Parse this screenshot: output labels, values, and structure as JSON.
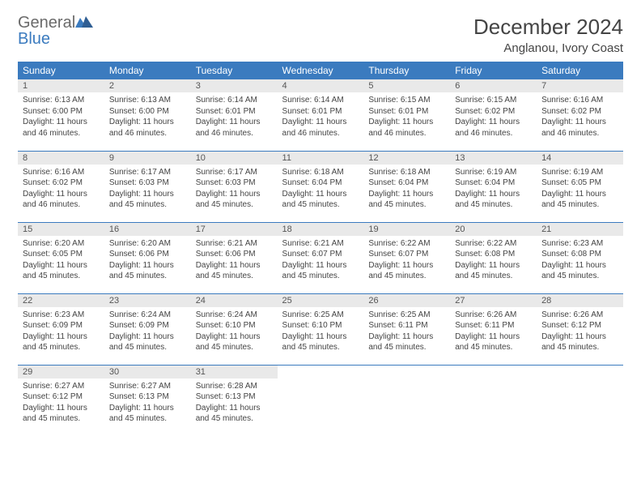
{
  "brand": {
    "word1": "General",
    "word2": "Blue"
  },
  "title": "December 2024",
  "location": "Anglanou, Ivory Coast",
  "colors": {
    "header_bg": "#3b7bbf",
    "header_text": "#ffffff",
    "daynum_bg": "#e9e9e9",
    "text": "#444444",
    "rule": "#3b7bbf",
    "page_bg": "#ffffff"
  },
  "day_names": [
    "Sunday",
    "Monday",
    "Tuesday",
    "Wednesday",
    "Thursday",
    "Friday",
    "Saturday"
  ],
  "weeks": [
    [
      {
        "n": "1",
        "sr": "6:13 AM",
        "ss": "6:00 PM",
        "dl": "11 hours and 46 minutes."
      },
      {
        "n": "2",
        "sr": "6:13 AM",
        "ss": "6:00 PM",
        "dl": "11 hours and 46 minutes."
      },
      {
        "n": "3",
        "sr": "6:14 AM",
        "ss": "6:01 PM",
        "dl": "11 hours and 46 minutes."
      },
      {
        "n": "4",
        "sr": "6:14 AM",
        "ss": "6:01 PM",
        "dl": "11 hours and 46 minutes."
      },
      {
        "n": "5",
        "sr": "6:15 AM",
        "ss": "6:01 PM",
        "dl": "11 hours and 46 minutes."
      },
      {
        "n": "6",
        "sr": "6:15 AM",
        "ss": "6:02 PM",
        "dl": "11 hours and 46 minutes."
      },
      {
        "n": "7",
        "sr": "6:16 AM",
        "ss": "6:02 PM",
        "dl": "11 hours and 46 minutes."
      }
    ],
    [
      {
        "n": "8",
        "sr": "6:16 AM",
        "ss": "6:02 PM",
        "dl": "11 hours and 46 minutes."
      },
      {
        "n": "9",
        "sr": "6:17 AM",
        "ss": "6:03 PM",
        "dl": "11 hours and 45 minutes."
      },
      {
        "n": "10",
        "sr": "6:17 AM",
        "ss": "6:03 PM",
        "dl": "11 hours and 45 minutes."
      },
      {
        "n": "11",
        "sr": "6:18 AM",
        "ss": "6:04 PM",
        "dl": "11 hours and 45 minutes."
      },
      {
        "n": "12",
        "sr": "6:18 AM",
        "ss": "6:04 PM",
        "dl": "11 hours and 45 minutes."
      },
      {
        "n": "13",
        "sr": "6:19 AM",
        "ss": "6:04 PM",
        "dl": "11 hours and 45 minutes."
      },
      {
        "n": "14",
        "sr": "6:19 AM",
        "ss": "6:05 PM",
        "dl": "11 hours and 45 minutes."
      }
    ],
    [
      {
        "n": "15",
        "sr": "6:20 AM",
        "ss": "6:05 PM",
        "dl": "11 hours and 45 minutes."
      },
      {
        "n": "16",
        "sr": "6:20 AM",
        "ss": "6:06 PM",
        "dl": "11 hours and 45 minutes."
      },
      {
        "n": "17",
        "sr": "6:21 AM",
        "ss": "6:06 PM",
        "dl": "11 hours and 45 minutes."
      },
      {
        "n": "18",
        "sr": "6:21 AM",
        "ss": "6:07 PM",
        "dl": "11 hours and 45 minutes."
      },
      {
        "n": "19",
        "sr": "6:22 AM",
        "ss": "6:07 PM",
        "dl": "11 hours and 45 minutes."
      },
      {
        "n": "20",
        "sr": "6:22 AM",
        "ss": "6:08 PM",
        "dl": "11 hours and 45 minutes."
      },
      {
        "n": "21",
        "sr": "6:23 AM",
        "ss": "6:08 PM",
        "dl": "11 hours and 45 minutes."
      }
    ],
    [
      {
        "n": "22",
        "sr": "6:23 AM",
        "ss": "6:09 PM",
        "dl": "11 hours and 45 minutes."
      },
      {
        "n": "23",
        "sr": "6:24 AM",
        "ss": "6:09 PM",
        "dl": "11 hours and 45 minutes."
      },
      {
        "n": "24",
        "sr": "6:24 AM",
        "ss": "6:10 PM",
        "dl": "11 hours and 45 minutes."
      },
      {
        "n": "25",
        "sr": "6:25 AM",
        "ss": "6:10 PM",
        "dl": "11 hours and 45 minutes."
      },
      {
        "n": "26",
        "sr": "6:25 AM",
        "ss": "6:11 PM",
        "dl": "11 hours and 45 minutes."
      },
      {
        "n": "27",
        "sr": "6:26 AM",
        "ss": "6:11 PM",
        "dl": "11 hours and 45 minutes."
      },
      {
        "n": "28",
        "sr": "6:26 AM",
        "ss": "6:12 PM",
        "dl": "11 hours and 45 minutes."
      }
    ],
    [
      {
        "n": "29",
        "sr": "6:27 AM",
        "ss": "6:12 PM",
        "dl": "11 hours and 45 minutes."
      },
      {
        "n": "30",
        "sr": "6:27 AM",
        "ss": "6:13 PM",
        "dl": "11 hours and 45 minutes."
      },
      {
        "n": "31",
        "sr": "6:28 AM",
        "ss": "6:13 PM",
        "dl": "11 hours and 45 minutes."
      },
      null,
      null,
      null,
      null
    ]
  ],
  "labels": {
    "sunrise": "Sunrise:",
    "sunset": "Sunset:",
    "daylight": "Daylight:"
  }
}
